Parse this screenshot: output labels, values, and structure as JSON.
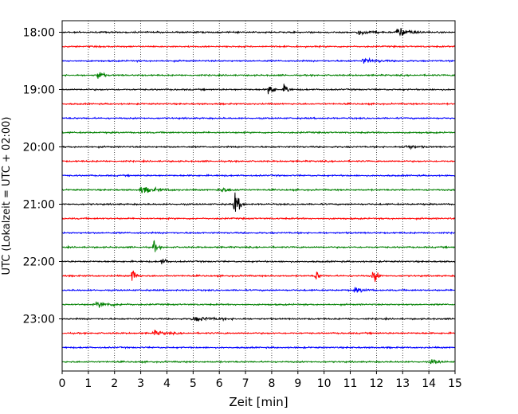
{
  "chart_data": {
    "type": "line",
    "title": "",
    "xlabel": "Zeit  [min]",
    "ylabel": "UTC (Lokalzeit = UTC + 02:00)",
    "xlim": [
      0,
      15
    ],
    "x_ticks": [
      0,
      1,
      2,
      3,
      4,
      5,
      6,
      7,
      8,
      9,
      10,
      11,
      12,
      13,
      14,
      15
    ],
    "y_tick_labels": [
      "18:00",
      "19:00",
      "20:00",
      "21:00",
      "22:00",
      "23:00"
    ],
    "grid": "vertical dotted",
    "legend": "none",
    "color_cycle": [
      "#000000",
      "#ff0000",
      "#0000ff",
      "#008000"
    ],
    "trace_count": 24,
    "trace_start": "18:00",
    "trace_interval_min": 15,
    "noise_level": 0.8,
    "events": [
      {
        "trace": 0,
        "x": 11.3,
        "amp": 3,
        "dur": 1.0
      },
      {
        "trace": 0,
        "x": 12.8,
        "amp": 5,
        "dur": 1.2
      },
      {
        "trace": 2,
        "x": 11.5,
        "amp": 3,
        "dur": 1.2
      },
      {
        "trace": 3,
        "x": 1.4,
        "amp": 9,
        "dur": 0.3
      },
      {
        "trace": 4,
        "x": 7.9,
        "amp": 12,
        "dur": 0.3
      },
      {
        "trace": 4,
        "x": 8.5,
        "amp": 9,
        "dur": 0.3
      },
      {
        "trace": 8,
        "x": 13.1,
        "amp": 3,
        "dur": 0.8
      },
      {
        "trace": 11,
        "x": 3.0,
        "amp": 4,
        "dur": 1.5
      },
      {
        "trace": 11,
        "x": 6.0,
        "amp": 3,
        "dur": 1.0
      },
      {
        "trace": 12,
        "x": 6.6,
        "amp": 16,
        "dur": 0.4
      },
      {
        "trace": 15,
        "x": 3.5,
        "amp": 7,
        "dur": 0.3
      },
      {
        "trace": 16,
        "x": 3.8,
        "amp": 4,
        "dur": 0.4
      },
      {
        "trace": 17,
        "x": 2.7,
        "amp": 11,
        "dur": 0.3
      },
      {
        "trace": 17,
        "x": 9.7,
        "amp": 6,
        "dur": 0.3
      },
      {
        "trace": 17,
        "x": 11.9,
        "amp": 11,
        "dur": 0.3
      },
      {
        "trace": 18,
        "x": 11.2,
        "amp": 3,
        "dur": 0.8
      },
      {
        "trace": 19,
        "x": 1.3,
        "amp": 3,
        "dur": 1.5
      },
      {
        "trace": 20,
        "x": 5.0,
        "amp": 2.5,
        "dur": 2.0
      },
      {
        "trace": 21,
        "x": 3.5,
        "amp": 3,
        "dur": 1.0
      },
      {
        "trace": 23,
        "x": 14.1,
        "amp": 3,
        "dur": 0.6
      }
    ]
  }
}
